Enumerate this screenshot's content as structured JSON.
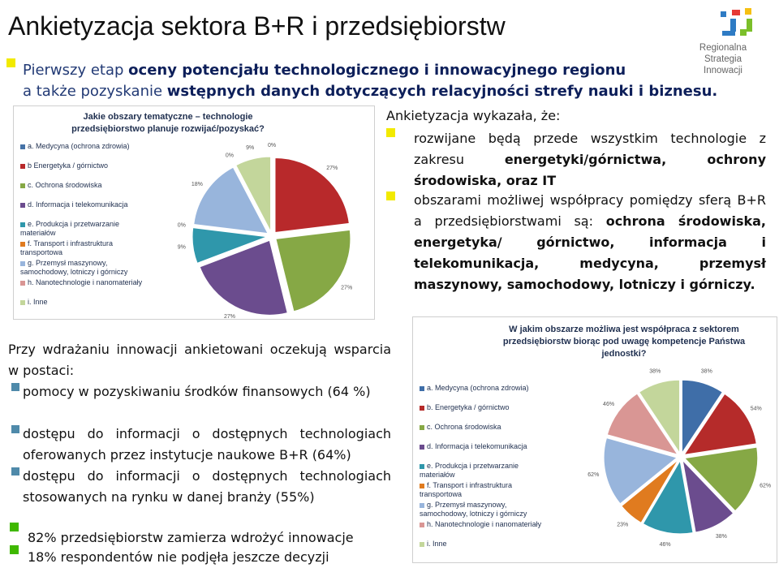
{
  "title": "Ankietyzacja sektora B+R i przedsiębiorstw",
  "logo": {
    "line1": "Regionalna",
    "line2": "Strategia",
    "line3": "Innowacji"
  },
  "intro": {
    "l1_a": "Pierwszy etap ",
    "l1_b": "oceny potencjału technologicznego i innowacyjnego regionu",
    "l2_a": "a także pozyskanie ",
    "l2_b": "wstępnych danych dotyczących relacyjności strefy nauki i biznesu."
  },
  "right_text": {
    "heading": "Ankietyzacja wykazała, że:",
    "b1_plain": "rozwijane będą przede wszystkim technologie z zakresu ",
    "b1_bold": "energetyki/górnictwa, ochrony środowiska, oraz IT",
    "b2_plain": "obszarami możliwej współpracy pomiędzy sferą B+R a przedsiębiorstwami są: ",
    "b2_bold": "ochrona środowiska, energetyka/ górnictwo, informacja i telekomunikacja, medycyna, przemysł maszynowy, samochodowy, lotniczy i górniczy."
  },
  "left_text": {
    "intro": "Przy wdrażaniu innowacji ankietowani oczekują wsparcia w postaci:",
    "items": [
      "pomocy w pozyskiwaniu środków finansowych (64 %)",
      "dostępu do informacji o dostępnych technologiach oferowanych przez instytucje naukowe B+R (64%)",
      "dostępu do informacji o dostępnych technologiach stosowanych na rynku w danej branży (55%)"
    ]
  },
  "bottom": {
    "line1": "82% przedsiębiorstw zamierza wdrożyć innowacje",
    "line2": "18% respondentów nie podjęła jeszcze decyzji"
  },
  "chart_data": [
    {
      "type": "pie",
      "title": "Jakie obszary tematyczne – technologie przedsiębiorstwo planuje rozwijać/pozyskać?",
      "categories": [
        "a. Medycyna (ochrona zdrowia)",
        "b Energetyka / górnictwo",
        "c. Ochrona środowiska",
        "d. Informacja i telekomunikacja",
        "e. Produkcja i przetwarzanie materiałów",
        "f. Transport i infrastruktura transportowa",
        "g. Przemysł maszynowy, samochodowy, lotniczy i górniczy",
        "h. Nanotechnologie i nanomateriały",
        "i. Inne"
      ],
      "values": [
        0,
        27,
        27,
        27,
        9,
        0,
        18,
        0,
        9
      ],
      "labels": [
        "0%",
        "27%",
        "27%",
        "27%",
        "9%",
        "0%",
        "18%",
        "0%",
        "9%"
      ],
      "colors": [
        "#4572a7",
        "#b8292b",
        "#86a845",
        "#6b4c8e",
        "#2f97ab",
        "#e07b1f",
        "#98b5dc",
        "#d99694",
        "#c3d69b"
      ],
      "legend": "left"
    },
    {
      "type": "pie",
      "title": "W jakim obszarze możliwa jest współpraca z sektorem przedsiębiorstw biorąc pod uwagę kompetencje Państwa jednostki?",
      "categories": [
        "a. Medycyna (ochrona zdrowia)",
        "b. Energetyka / górnictwo",
        "c. Ochrona środowiska",
        "d. Informacja i telekomunikacja",
        "e. Produkcja i przetwarzanie materiałów",
        "f. Transport i infrastruktura transportowa",
        "g. Przemysł maszynowy, samochodowy, lotniczy i górniczy",
        "h. Nanotechnologie i nanomateriały",
        "i. Inne"
      ],
      "values": [
        38,
        54,
        62,
        38,
        46,
        23,
        62,
        46,
        38
      ],
      "labels": [
        "38%",
        "54%",
        "62%",
        "38%",
        "46%",
        "23%",
        "62%",
        "46%",
        "38%"
      ],
      "colors": [
        "#3f6ea8",
        "#b52b2a",
        "#86a845",
        "#6b4c8e",
        "#2f97ab",
        "#e07b1f",
        "#98b5dc",
        "#d99694",
        "#c3d69b"
      ],
      "legend": "left"
    }
  ]
}
